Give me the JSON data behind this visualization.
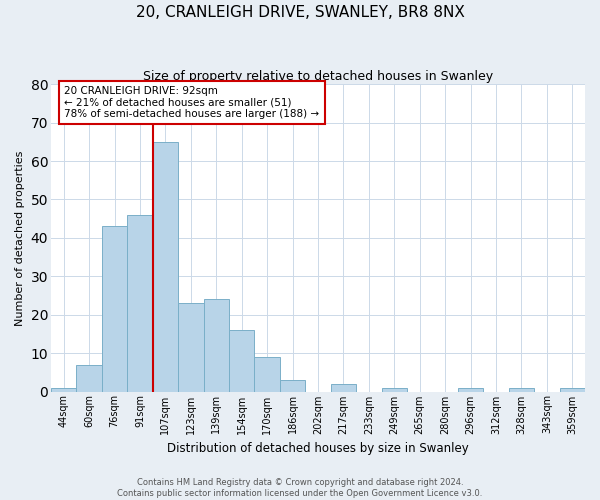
{
  "title": "20, CRANLEIGH DRIVE, SWANLEY, BR8 8NX",
  "subtitle": "Size of property relative to detached houses in Swanley",
  "xlabel": "Distribution of detached houses by size in Swanley",
  "ylabel": "Number of detached properties",
  "categories": [
    "44sqm",
    "60sqm",
    "76sqm",
    "91sqm",
    "107sqm",
    "123sqm",
    "139sqm",
    "154sqm",
    "170sqm",
    "186sqm",
    "202sqm",
    "217sqm",
    "233sqm",
    "249sqm",
    "265sqm",
    "280sqm",
    "296sqm",
    "312sqm",
    "328sqm",
    "343sqm",
    "359sqm"
  ],
  "values": [
    1,
    7,
    43,
    46,
    65,
    23,
    24,
    16,
    9,
    3,
    0,
    2,
    0,
    1,
    0,
    0,
    1,
    0,
    1,
    0,
    1
  ],
  "bar_color": "#b8d4e8",
  "bar_edge_color": "#7aafc8",
  "property_line_index": 4,
  "property_line_color": "#cc0000",
  "annotation_line1": "20 CRANLEIGH DRIVE: 92sqm",
  "annotation_line2": "← 21% of detached houses are smaller (51)",
  "annotation_line3": "78% of semi-detached houses are larger (188) →",
  "annotation_box_color": "#ffffff",
  "annotation_box_edge": "#cc0000",
  "ylim": [
    0,
    80
  ],
  "yticks": [
    0,
    10,
    20,
    30,
    40,
    50,
    60,
    70,
    80
  ],
  "footer_line1": "Contains HM Land Registry data © Crown copyright and database right 2024.",
  "footer_line2": "Contains public sector information licensed under the Open Government Licence v3.0.",
  "bg_color": "#e8eef4",
  "plot_bg_color": "#ffffff",
  "title_fontsize": 11,
  "subtitle_fontsize": 9,
  "ylabel_fontsize": 8,
  "xlabel_fontsize": 8.5,
  "tick_fontsize": 7,
  "footer_fontsize": 6,
  "annot_fontsize": 7.5
}
